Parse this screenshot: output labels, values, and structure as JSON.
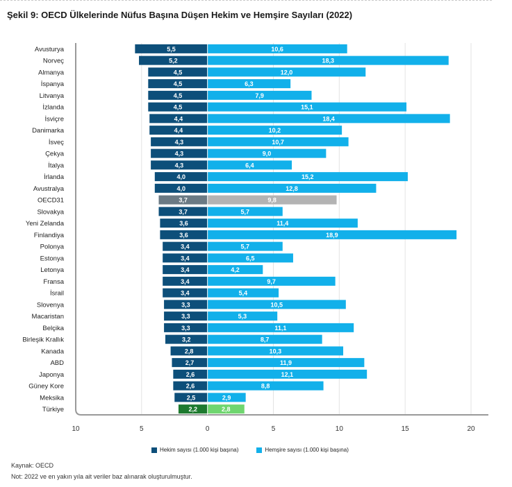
{
  "title": "Şekil 9: OECD Ülkelerinde Nüfus Başına Düşen Hekim ve Hemşire Sayıları (2022)",
  "legend": {
    "doctors": "Hekim sayısı (1.000 kişi başına)",
    "nurses": "Hemşire sayısı (1.000 kişi başına)"
  },
  "source": "Kaynak: OECD",
  "note": "Not: 2022 ve en yakın yıla ait veriler baz alınarak oluşturulmuştur.",
  "colors": {
    "doctors": "#0d4f7a",
    "nurses": "#12b0ea",
    "oecd_doctors": "#6b7a84",
    "oecd_nurses": "#b3b3b3",
    "turkey_doctors": "#1e7a2f",
    "turkey_nurses": "#6fd66f"
  },
  "chart_data": {
    "type": "bar",
    "orientation": "horizontal",
    "categories": [
      "Avusturya",
      "Norveç",
      "Almanya",
      "İspanya",
      "Litvanya",
      "İzlanda",
      "İsviçre",
      "Danimarka",
      "İsveç",
      "Çekya",
      "İtalya",
      "İrlanda",
      "Avustralya",
      "OECD31",
      "Slovakya",
      "Yeni Zelanda",
      "Finlandiya",
      "Polonya",
      "Estonya",
      "Letonya",
      "Fransa",
      "İsrail",
      "Slovenya",
      "Macaristan",
      "Belçika",
      "Birleşik Krallık",
      "Kanada",
      "ABD",
      "Japonya",
      "Güney Kore",
      "Meksika",
      "Türkiye"
    ],
    "series": [
      {
        "name": "Hekim sayısı (1.000 kişi başına)",
        "direction": "left",
        "values": [
          5.5,
          5.2,
          4.5,
          4.5,
          4.5,
          4.5,
          4.4,
          4.4,
          4.3,
          4.3,
          4.3,
          4.0,
          4.0,
          3.7,
          3.7,
          3.6,
          3.6,
          3.4,
          3.4,
          3.4,
          3.4,
          3.4,
          3.3,
          3.3,
          3.3,
          3.2,
          2.8,
          2.7,
          2.6,
          2.6,
          2.5,
          2.2
        ],
        "labels": [
          "5,5",
          "5,2",
          "4,5",
          "4,5",
          "4,5",
          "4,5",
          "4,4",
          "4,4",
          "4,3",
          "4,3",
          "4,3",
          "4,0",
          "4,0",
          "3,7",
          "3,7",
          "3,6",
          "3,6",
          "3,4",
          "3,4",
          "3,4",
          "3,4",
          "3,4",
          "3,3",
          "3,3",
          "3,3",
          "3,2",
          "2,8",
          "2,7",
          "2,6",
          "2,6",
          "2,5",
          "2,2"
        ]
      },
      {
        "name": "Hemşire sayısı (1.000 kişi başına)",
        "direction": "right",
        "values": [
          10.6,
          18.3,
          12.0,
          6.3,
          7.9,
          15.1,
          18.4,
          10.2,
          10.7,
          9.0,
          6.4,
          15.2,
          12.8,
          9.8,
          5.7,
          11.4,
          18.9,
          5.7,
          6.5,
          4.2,
          9.7,
          5.4,
          10.5,
          5.3,
          11.1,
          8.7,
          10.3,
          11.9,
          12.1,
          8.8,
          2.9,
          2.8
        ],
        "labels": [
          "10,6",
          "18,3",
          "12,0",
          "6,3",
          "7,9",
          "15,1",
          "18,4",
          "10,2",
          "10,7",
          "9,0",
          "6,4",
          "15,2",
          "12,8",
          "9,8",
          "5,7",
          "11,4",
          "18,9",
          "5,7",
          "6,5",
          "4,2",
          "9,7",
          "5,4",
          "10,5",
          "5,3",
          "11,1",
          "8,7",
          "10,3",
          "11,9",
          "12,1",
          "8,8",
          "2,9",
          "2,8"
        ]
      }
    ],
    "highlight": {
      "OECD31": "gray",
      "Türkiye": "green"
    },
    "xlim": [
      -10,
      20
    ],
    "xticks": [
      "10",
      "5",
      "0",
      "5",
      "10",
      "15",
      "20"
    ],
    "grid": "vertical",
    "legend_position": "bottom"
  }
}
